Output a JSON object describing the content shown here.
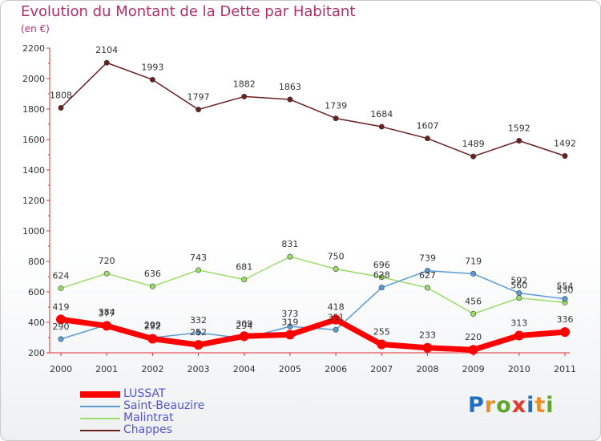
{
  "title": "Evolution du Montant de la Dette par Habitant",
  "unit": "(en €)",
  "logo": {
    "text": "Proxiti",
    "letters": [
      "P",
      "r",
      "o",
      "x",
      "i",
      "t",
      "i"
    ],
    "letter_colors": [
      "#1e6fc0",
      "#e8902a",
      "#5da82a",
      "#e03a2a",
      "#1e6fc0",
      "#e8902a",
      "#5da82a"
    ]
  },
  "chart_data": {
    "type": "line",
    "title": "Evolution du Montant de la Dette par Habitant",
    "ylabel": "(en €)",
    "xlabel": "",
    "ylim": [
      200,
      2200
    ],
    "yticks": [
      200,
      400,
      600,
      800,
      1000,
      1200,
      1400,
      1600,
      1800,
      2000,
      2200
    ],
    "grid": false,
    "legend_position": "bottom-left",
    "x": [
      "2000",
      "2001",
      "2002",
      "2003",
      "2004",
      "2005",
      "2006",
      "2007",
      "2008",
      "2009",
      "2010",
      "2011"
    ],
    "series": [
      {
        "name": "Chappes",
        "color": "#6b1e1e",
        "values": [
          1808,
          2104,
          1993,
          1797,
          1882,
          1863,
          1739,
          1684,
          1607,
          1489,
          1592,
          1492
        ]
      },
      {
        "name": "Malintrat",
        "color": "#99dd66",
        "values": [
          624,
          720,
          636,
          743,
          681,
          831,
          750,
          696,
          627,
          456,
          560,
          530
        ]
      },
      {
        "name": "Saint-Beauzire",
        "color": "#5b9bd5",
        "values": [
          290,
          384,
          299,
          332,
          294,
          373,
          351,
          628,
          739,
          719,
          592,
          554
        ]
      },
      {
        "name": "LUSSAT",
        "color": "#ff0000",
        "values": [
          419,
          377,
          292,
          252,
          309,
          319,
          418,
          255,
          233,
          220,
          313,
          336
        ]
      }
    ]
  }
}
